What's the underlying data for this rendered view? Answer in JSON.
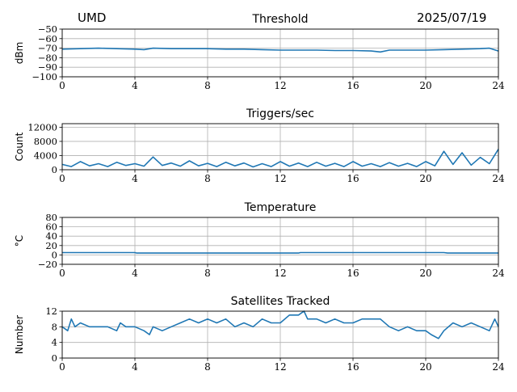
{
  "header": {
    "site": "UMD",
    "date": "2025/07/19"
  },
  "chart_data": [
    {
      "type": "line",
      "title": "Threshold",
      "ylabel": "dBm",
      "xlabel": "",
      "xlim": [
        0,
        24
      ],
      "ylim": [
        -100,
        -50
      ],
      "xticks": [
        "0",
        "4",
        "8",
        "12",
        "16",
        "20",
        "24"
      ],
      "yticks": [
        "−100",
        "−90",
        "−80",
        "−70",
        "−60",
        "−50"
      ],
      "grid": true,
      "series": [
        {
          "color": "#1f77b4",
          "x": [
            0,
            1,
            2,
            3,
            4,
            4.5,
            5,
            6,
            7,
            8,
            9,
            10,
            11,
            12,
            13,
            14,
            15,
            16,
            17,
            17.5,
            18,
            19,
            20,
            21,
            22,
            23,
            23.5,
            24
          ],
          "y": [
            -71,
            -70.5,
            -70,
            -70.5,
            -71,
            -71.5,
            -70,
            -70.5,
            -70.5,
            -70.5,
            -71,
            -71,
            -71.5,
            -72,
            -72,
            -72,
            -72.5,
            -72.5,
            -73,
            -74,
            -72,
            -72,
            -72,
            -71.5,
            -71,
            -70.5,
            -70,
            -73
          ]
        }
      ]
    },
    {
      "type": "line",
      "title": "Triggers/sec",
      "ylabel": "Count",
      "xlabel": "",
      "xlim": [
        0,
        24
      ],
      "ylim": [
        0,
        13000
      ],
      "xticks": [
        "0",
        "4",
        "8",
        "12",
        "16",
        "20",
        "24"
      ],
      "yticks": [
        "0",
        "4000",
        "8000",
        "12000"
      ],
      "grid": true,
      "series": [
        {
          "color": "#1f77b4",
          "x": [
            0,
            0.5,
            1,
            1.5,
            2,
            2.5,
            3,
            3.5,
            4,
            4.5,
            5,
            5.5,
            6,
            6.5,
            7,
            7.5,
            8,
            8.5,
            9,
            9.5,
            10,
            10.5,
            11,
            11.5,
            12,
            12.5,
            13,
            13.5,
            14,
            14.5,
            15,
            15.5,
            16,
            16.5,
            17,
            17.5,
            18,
            18.5,
            19,
            19.5,
            20,
            20.5,
            21,
            21.5,
            22,
            22.5,
            23,
            23.5,
            24
          ],
          "y": [
            1500,
            900,
            2300,
            1100,
            1700,
            900,
            2100,
            1200,
            1700,
            1000,
            3600,
            1200,
            1900,
            1000,
            2500,
            1100,
            1800,
            900,
            2100,
            1100,
            1900,
            800,
            1700,
            900,
            2300,
            1000,
            1900,
            900,
            2100,
            1000,
            1800,
            900,
            2300,
            1000,
            1700,
            900,
            2000,
            1000,
            1800,
            900,
            2300,
            1100,
            5200,
            1500,
            4800,
            1300,
            3500,
            1700,
            5800
          ]
        }
      ]
    },
    {
      "type": "line",
      "title": "Temperature",
      "ylabel": "°C",
      "xlabel": "",
      "xlim": [
        0,
        24
      ],
      "ylim": [
        -20,
        80
      ],
      "xticks": [
        "0",
        "4",
        "8",
        "12",
        "16",
        "20",
        "24"
      ],
      "yticks": [
        "−20",
        "0",
        "20",
        "40",
        "60",
        "80"
      ],
      "grid": true,
      "series": [
        {
          "color": "#1f77b4",
          "x": [
            0,
            4,
            4.1,
            13,
            13.1,
            21,
            21.2,
            24
          ],
          "y": [
            5,
            5,
            4,
            4,
            5,
            5,
            4,
            4
          ]
        }
      ]
    },
    {
      "type": "line",
      "title": "Satellites Tracked",
      "ylabel": "Number",
      "xlabel": "",
      "xlim": [
        0,
        24
      ],
      "ylim": [
        0,
        12
      ],
      "xticks": [
        "0",
        "4",
        "8",
        "12",
        "16",
        "20",
        "24"
      ],
      "yticks": [
        "0",
        "4",
        "8",
        "12"
      ],
      "grid": true,
      "series": [
        {
          "color": "#1f77b4",
          "x": [
            0,
            0.3,
            0.5,
            0.7,
            1,
            1.5,
            2,
            2.5,
            3,
            3.2,
            3.5,
            4,
            4.5,
            4.8,
            5,
            5.5,
            6,
            6.5,
            7,
            7.5,
            8,
            8.5,
            9,
            9.5,
            10,
            10.5,
            11,
            11.5,
            12,
            12.5,
            13,
            13.3,
            13.5,
            14,
            14.5,
            15,
            15.5,
            16,
            16.5,
            17,
            17.5,
            18,
            18.5,
            19,
            19.5,
            20,
            20.3,
            20.7,
            21,
            21.5,
            22,
            22.5,
            23,
            23.5,
            23.8,
            24
          ],
          "y": [
            8,
            7,
            10,
            8,
            9,
            8,
            8,
            8,
            7,
            9,
            8,
            8,
            7,
            6,
            8,
            7,
            8,
            9,
            10,
            9,
            10,
            9,
            10,
            8,
            9,
            8,
            10,
            9,
            9,
            11,
            11,
            12,
            10,
            10,
            9,
            10,
            9,
            9,
            10,
            10,
            10,
            8,
            7,
            8,
            7,
            7,
            6,
            5,
            7,
            9,
            8,
            9,
            8,
            7,
            10,
            8
          ]
        }
      ]
    }
  ]
}
